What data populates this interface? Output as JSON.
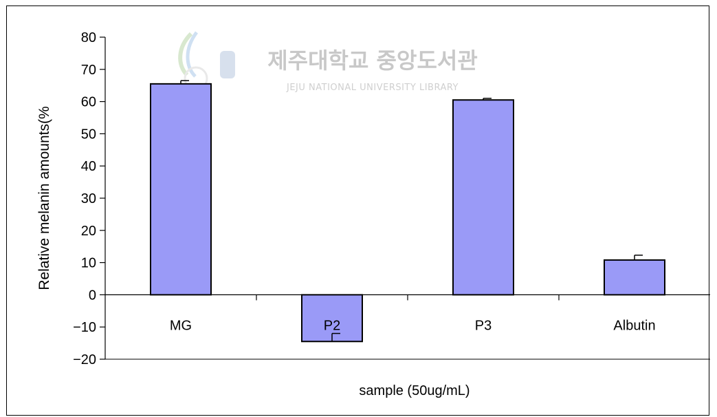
{
  "watermark": {
    "title": "제주대학교 중앙도서관",
    "subtitle": "JEJU NATIONAL UNIVERSITY  LIBRARY"
  },
  "colors": {
    "bar_fill": "#9a9af7",
    "bar_stroke": "#000000",
    "axis": "#000000",
    "watermark": "#c8c8c8"
  },
  "chart_data": {
    "type": "bar",
    "title": "",
    "xlabel": "sample (50ug/mL)",
    "ylabel": "Relative melanin amounts(%",
    "categories": [
      "MG",
      "P2",
      "P3",
      "Albutin"
    ],
    "series": [
      {
        "values": [
          65.5,
          -14.5,
          60.5,
          10.8
        ],
        "errors": [
          1.0,
          2.5,
          0.5,
          1.5
        ]
      }
    ],
    "ylim": [
      -20,
      80
    ],
    "yticks": [
      80,
      70,
      60,
      50,
      40,
      30,
      20,
      10,
      0,
      -10,
      -20
    ],
    "ytick_labels": [
      "80",
      "70",
      "60",
      "50",
      "40",
      "30",
      "20",
      "10",
      "0",
      "−10",
      "−20"
    ],
    "grid": false,
    "legend": "none"
  }
}
